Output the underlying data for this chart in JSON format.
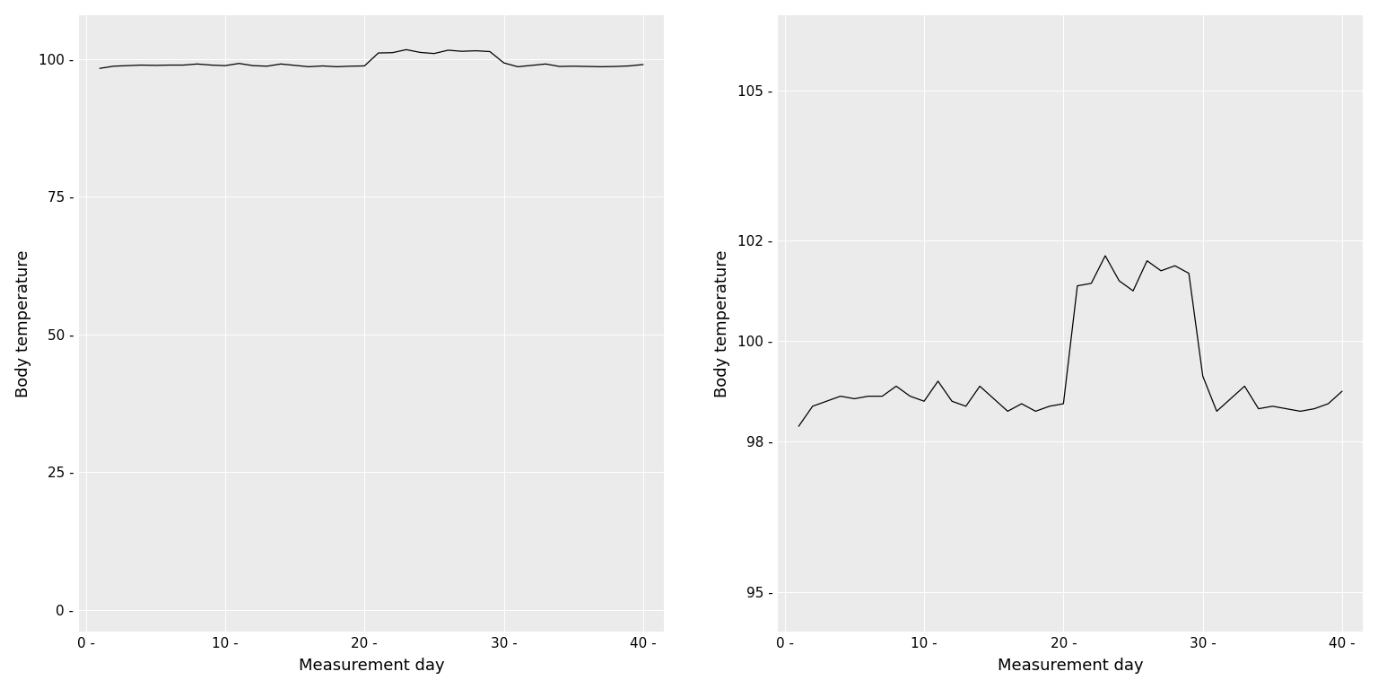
{
  "days": [
    1,
    2,
    3,
    4,
    5,
    6,
    7,
    8,
    9,
    10,
    11,
    12,
    13,
    14,
    15,
    16,
    17,
    18,
    19,
    20,
    21,
    22,
    23,
    24,
    25,
    26,
    27,
    28,
    29,
    30,
    31,
    32,
    33,
    34,
    35,
    36,
    37,
    38,
    39,
    40
  ],
  "temperatures": [
    98.3,
    98.7,
    98.8,
    98.9,
    98.85,
    98.9,
    98.9,
    99.1,
    98.9,
    98.8,
    99.2,
    98.8,
    98.7,
    99.1,
    98.85,
    98.6,
    98.75,
    98.6,
    98.7,
    98.75,
    101.1,
    101.15,
    101.7,
    101.2,
    101.0,
    101.6,
    101.4,
    101.5,
    101.35,
    99.3,
    98.6,
    98.85,
    99.1,
    98.65,
    98.7,
    98.65,
    98.6,
    98.65,
    98.75,
    99.0
  ],
  "xlabel": "Measurement day",
  "ylabel": "Body temperature",
  "background_color": "#ebebeb",
  "line_color": "#000000",
  "plot1_yticks": [
    0,
    25,
    50,
    75,
    100
  ],
  "plot1_ylim": [
    -4,
    108
  ],
  "plot2_yticks": [
    95,
    98,
    100,
    102,
    105
  ],
  "plot2_ylim": [
    94.2,
    106.5
  ],
  "xticks": [
    0,
    10,
    20,
    30,
    40
  ],
  "xlim": [
    -0.5,
    41.5
  ],
  "grid_color": "#ffffff",
  "figure_bg": "#ffffff",
  "tick_labelsize": 11,
  "axis_labelsize": 13
}
